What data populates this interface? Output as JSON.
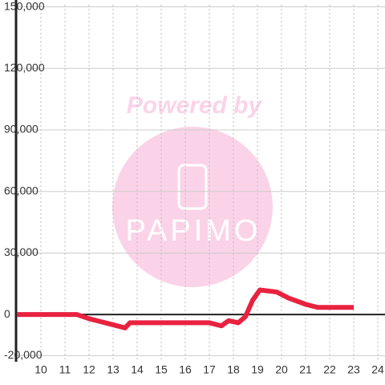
{
  "chart_data": {
    "type": "line",
    "watermark": {
      "top": "Powered by",
      "logo": "PAPIMO"
    },
    "x": [
      9,
      11.5,
      12,
      12.5,
      13,
      13.5,
      13.7,
      17,
      17.5,
      17.8,
      18.2,
      18.5,
      18.8,
      19.1,
      19.8,
      20.3,
      21,
      21.5,
      23
    ],
    "series": [
      {
        "color": "#e8223f",
        "values": [
          0,
          0,
          -2000,
          -3500,
          -5000,
          -6500,
          -4000,
          -4000,
          -5500,
          -3000,
          -4000,
          -1000,
          7000,
          12000,
          11000,
          8000,
          5000,
          3500,
          3500
        ]
      }
    ],
    "xlim": [
      9,
      24.3
    ],
    "xticks": [
      10,
      11,
      12,
      13,
      14,
      15,
      16,
      17,
      18,
      19,
      20,
      21,
      22,
      23,
      24
    ],
    "ylim": [
      -23000,
      151000
    ],
    "yticks": [
      {
        "value": -20000,
        "label": "-20,000"
      },
      0,
      {
        "value": 30000,
        "label": "30,000"
      },
      {
        "value": 60000,
        "label": "60,000"
      },
      {
        "value": 90000,
        "label": "90,000"
      },
      {
        "value": 120000,
        "label": "120,000"
      },
      {
        "value": 150000,
        "label": "150,000"
      }
    ],
    "grid": true
  }
}
